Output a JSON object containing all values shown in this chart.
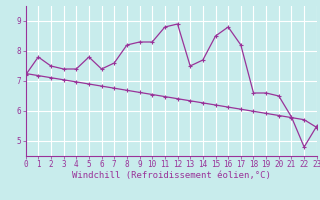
{
  "xlabel": "Windchill (Refroidissement éolien,°C)",
  "bg_color": "#c8ecec",
  "line_color": "#993399",
  "grid_color": "#ffffff",
  "x_values": [
    0,
    1,
    2,
    3,
    4,
    5,
    6,
    7,
    8,
    9,
    10,
    11,
    12,
    13,
    14,
    15,
    16,
    17,
    18,
    19,
    20,
    21,
    22,
    23
  ],
  "y_data": [
    7.2,
    7.8,
    7.5,
    7.4,
    7.4,
    7.8,
    7.4,
    7.6,
    8.2,
    8.3,
    8.3,
    8.8,
    8.9,
    7.5,
    7.7,
    8.5,
    8.8,
    8.2,
    6.6,
    6.6,
    6.5,
    5.8,
    4.8,
    5.5
  ],
  "y_trend": [
    7.25,
    7.18,
    7.11,
    7.04,
    6.97,
    6.9,
    6.83,
    6.76,
    6.69,
    6.62,
    6.55,
    6.48,
    6.41,
    6.34,
    6.27,
    6.2,
    6.13,
    6.06,
    5.99,
    5.92,
    5.85,
    5.78,
    5.71,
    5.45
  ],
  "ylim": [
    4.5,
    9.5
  ],
  "xlim": [
    0,
    23
  ],
  "yticks": [
    5,
    6,
    7,
    8,
    9
  ],
  "xticks": [
    0,
    1,
    2,
    3,
    4,
    5,
    6,
    7,
    8,
    9,
    10,
    11,
    12,
    13,
    14,
    15,
    16,
    17,
    18,
    19,
    20,
    21,
    22,
    23
  ],
  "tick_fontsize": 5.5,
  "label_fontsize": 6.5
}
